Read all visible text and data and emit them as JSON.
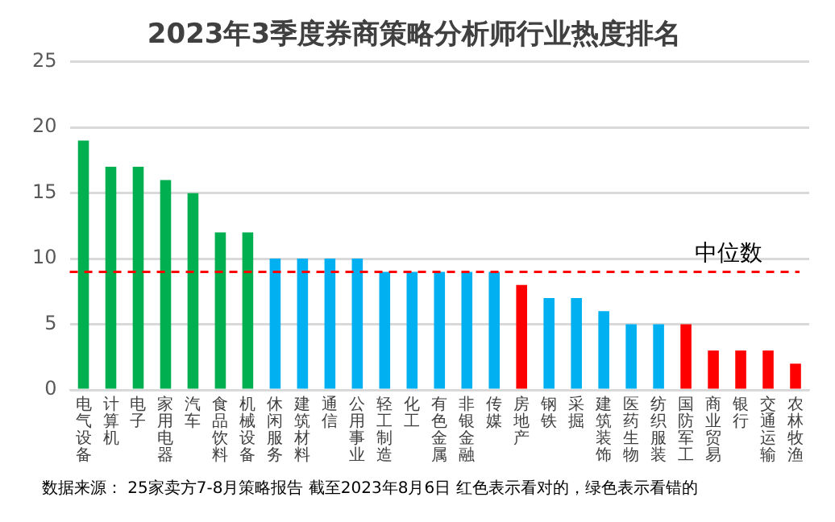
{
  "chart_data": {
    "type": "bar",
    "title": "2023年3季度券商策略分析师行业热度排名",
    "categories": [
      "电气设备",
      "计算机",
      "电子",
      "家用电器",
      "汽车",
      "食品饮料",
      "机械设备",
      "休闲服务",
      "建筑材料",
      "通信",
      "公用事业",
      "轻工制造",
      "化工",
      "有色金属",
      "非银金融",
      "传媒",
      "房地产",
      "钢铁",
      "采掘",
      "建筑装饰",
      "医药生物",
      "纺织服装",
      "国防军工",
      "商业贸易",
      "银行",
      "交通运输",
      "农林牧渔"
    ],
    "values": [
      19,
      17,
      17,
      16,
      15,
      12,
      12,
      10,
      10,
      10,
      10,
      9,
      9,
      9,
      9,
      9,
      8,
      7,
      7,
      6,
      5,
      5,
      5,
      3,
      3,
      3,
      2
    ],
    "colors": [
      "#00b050",
      "#00b050",
      "#00b050",
      "#00b050",
      "#00b050",
      "#00b050",
      "#00b050",
      "#00b0f0",
      "#00b0f0",
      "#00b0f0",
      "#00b0f0",
      "#00b0f0",
      "#00b0f0",
      "#00b0f0",
      "#00b0f0",
      "#00b0f0",
      "#ff0000",
      "#00b0f0",
      "#00b0f0",
      "#00b0f0",
      "#00b0f0",
      "#00b0f0",
      "#ff0000",
      "#ff0000",
      "#ff0000",
      "#ff0000",
      "#ff0000"
    ],
    "ylim": [
      0,
      25
    ],
    "yticks": [
      0,
      5,
      10,
      15,
      20,
      25
    ],
    "grid": "y",
    "legend": false,
    "ref_lines": [
      {
        "axis": "y",
        "value": 9,
        "label": "中位数",
        "color": "#ff0000",
        "line_style": "dashed"
      }
    ],
    "annotations": [
      "数据来源：  25家卖方7-8月策略报告 截至2023年8月6日 红色表示看对的，绿色表示看错的"
    ]
  }
}
